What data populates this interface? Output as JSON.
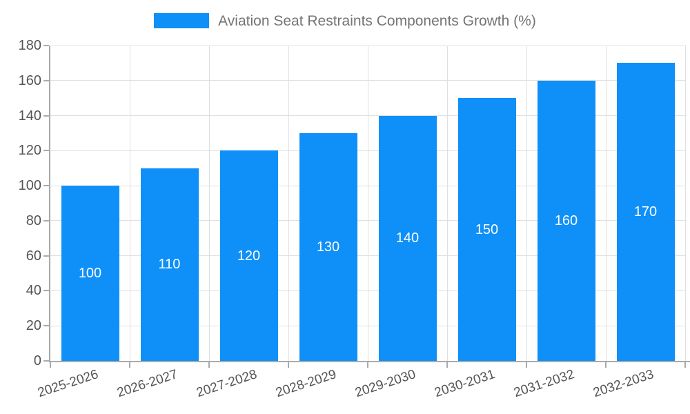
{
  "legend": {
    "label": "Aviation Seat Restraints Components Growth (%)"
  },
  "chart_data": {
    "type": "bar",
    "title": "Aviation Seat Restraints Components Growth (%)",
    "xlabel": "",
    "ylabel": "",
    "categories": [
      "2025-2026",
      "2026-2027",
      "2027-2028",
      "2028-2029",
      "2029-2030",
      "2030-2031",
      "2031-2032",
      "2032-2033"
    ],
    "values": [
      100,
      110,
      120,
      130,
      140,
      150,
      160,
      170
    ],
    "bar_labels": [
      "100",
      "110",
      "120",
      "130",
      "140",
      "150",
      "160",
      "170"
    ],
    "ylim": [
      0,
      180
    ],
    "ytick_step": 20,
    "yticks": [
      0,
      20,
      40,
      60,
      80,
      100,
      120,
      140,
      160,
      180
    ],
    "grid": true,
    "legend_position": "top",
    "colors": {
      "bar": "#0e90f8",
      "bar_label": "#ffffff",
      "axis_line": "#aaaaaa",
      "grid_line": "#e0e0e0",
      "tick_mark": "#aaaaaa",
      "tick_label": "#555555",
      "legend_text": "#747474",
      "background": "#ffffff"
    }
  }
}
